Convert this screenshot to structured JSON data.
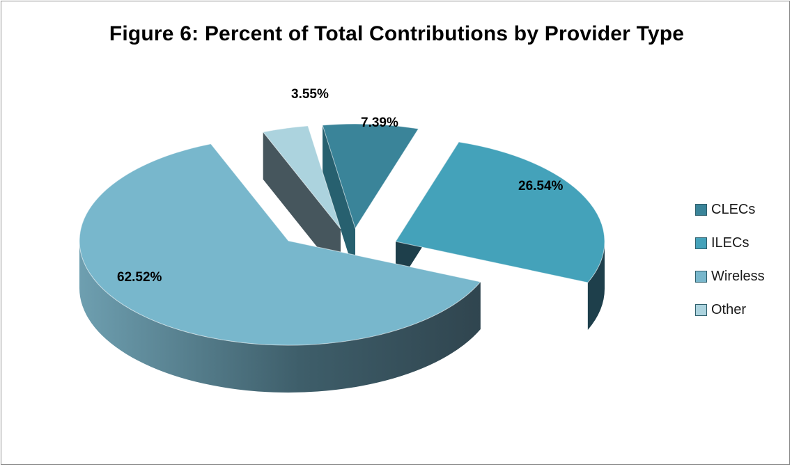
{
  "chart_data": {
    "type": "pie",
    "title": "Figure 6: Percent of Total Contributions by Provider Type",
    "categories": [
      "CLECs",
      "ILECs",
      "Wireless",
      "Other"
    ],
    "values": [
      7.39,
      26.54,
      62.52,
      3.55
    ],
    "data_labels": [
      "7.39%",
      "26.54%",
      "62.52%",
      "3.55%"
    ],
    "unit": "%",
    "style": "3d-exploded",
    "legend_position": "right",
    "colors": {
      "CLECs": "#3a8499",
      "ILECs": "#44a2ba",
      "Wireless": "#78b7cc",
      "Other": "#acd3de"
    },
    "side_colors": {
      "CLECs": "#27606f",
      "ILECs": "#1e3f4b",
      "Wireless": "#4b6b77",
      "Other": "#46565d"
    }
  }
}
